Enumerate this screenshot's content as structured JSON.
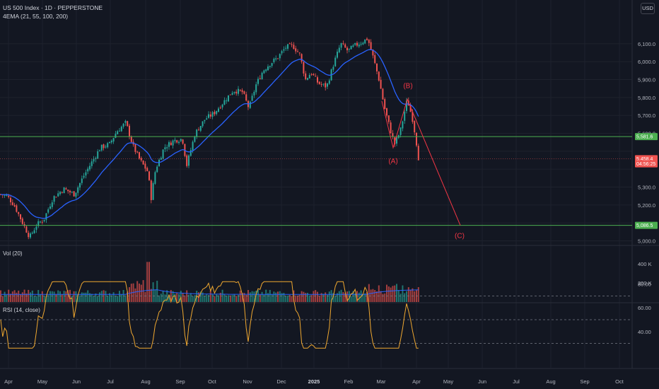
{
  "header": {
    "symbol_line": "US 500 Index · 1D · PEPPERSTONE",
    "indicator_line": "4EMA (21, 55, 100, 200)"
  },
  "currency_button": "USD",
  "colors": {
    "background": "#131722",
    "grid": "#1e222d",
    "up": "#26a69a",
    "down": "#ef5350",
    "ema": "#2962ff",
    "rsi": "#f0a830",
    "support_line": "#4caf50",
    "current_line": "#ef5350",
    "wave_labels": "#f23645"
  },
  "price_axis": {
    "ticks": [
      "6,100.0",
      "6,000.0",
      "5,900.0",
      "5,800.0",
      "5,700.0",
      "5,600.0",
      "5,300.0",
      "5,200.0",
      "5,000.0"
    ],
    "tick_values": [
      6100,
      6000,
      5900,
      5800,
      5700,
      5600,
      5300,
      5200,
      5000
    ],
    "tags": [
      {
        "label": "5,581.6",
        "value": 5581.6,
        "color": "#4caf50"
      },
      {
        "label": "5,458.4",
        "value": 5458.4,
        "color": "#ef5350"
      },
      {
        "label": "04:56:25",
        "value": 5430,
        "color": "#ef5350"
      },
      {
        "label": "5,086.5",
        "value": 5086.5,
        "color": "#4caf50"
      }
    ]
  },
  "time_axis": {
    "labels": [
      "Apr",
      "May",
      "Jun",
      "Jul",
      "Aug",
      "Sep",
      "Oct",
      "Nov",
      "Dec",
      "2025",
      "Feb",
      "Mar",
      "Apr",
      "May",
      "Jun",
      "Jul",
      "Aug",
      "Sep",
      "Oct"
    ]
  },
  "elliott_wave": {
    "labels": [
      "(A)",
      "(B)",
      "(C)"
    ]
  },
  "volume_pane": {
    "title": "Vol (20)",
    "ticks": [
      "400 K",
      "200 K"
    ],
    "tick_values": [
      400,
      200
    ]
  },
  "rsi_pane": {
    "title": "RSI (14, close)",
    "ticks": [
      "80.00",
      "60.00",
      "40.00"
    ],
    "tick_values": [
      80,
      60,
      40
    ],
    "bands": [
      70,
      50,
      30
    ]
  },
  "chart_data": {
    "type": "line",
    "title": "US 500 Index · 1D · PEPPERSTONE",
    "x": [
      "Apr",
      "May",
      "Jun",
      "Jul",
      "Aug",
      "Sep",
      "Oct",
      "Nov",
      "Dec",
      "2025",
      "Feb",
      "Mar",
      "Apr"
    ],
    "series": [
      {
        "name": "close",
        "values": [
          5250,
          5060,
          5280,
          5470,
          5500,
          5600,
          5770,
          5900,
          6070,
          5950,
          6060,
          5620,
          5458.4
        ]
      },
      {
        "name": "EMA",
        "values": [
          5200,
          5150,
          5230,
          5420,
          5450,
          5560,
          5700,
          5820,
          6000,
          5960,
          6040,
          5720,
          5600
        ]
      }
    ],
    "ylim": [
      4980,
      6160
    ],
    "support_levels": [
      5581.6,
      5086.5
    ],
    "last_price": 5458.4,
    "wave_points": [
      {
        "label": "(A)",
        "value": 5520
      },
      {
        "label": "(B)",
        "value": 5790
      },
      {
        "label": "(C)",
        "value": 5086.5
      }
    ]
  }
}
